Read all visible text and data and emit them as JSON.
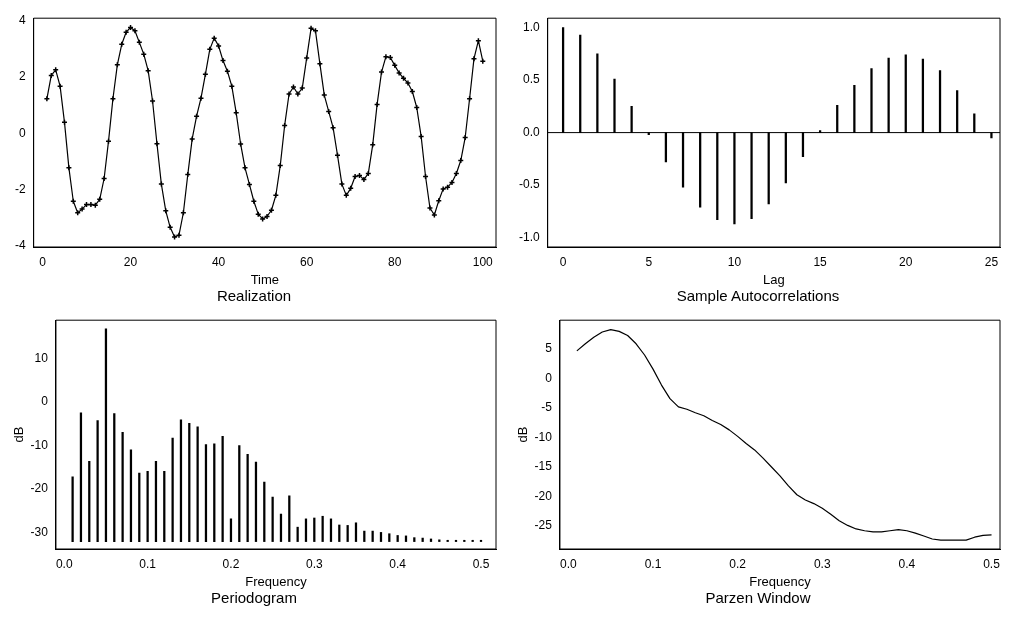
{
  "chart_data": [
    {
      "type": "line",
      "title": "Realization",
      "xlabel": "Time",
      "color": "#000000",
      "marker": "cross",
      "line_style": "solid",
      "x": [
        1,
        2,
        3,
        4,
        5,
        6,
        7,
        8,
        9,
        10,
        11,
        12,
        13,
        14,
        15,
        16,
        17,
        18,
        19,
        20,
        21,
        22,
        23,
        24,
        25,
        26,
        27,
        28,
        29,
        30,
        31,
        32,
        33,
        34,
        35,
        36,
        37,
        38,
        39,
        40,
        41,
        42,
        43,
        44,
        45,
        46,
        47,
        48,
        49,
        50,
        51,
        52,
        53,
        54,
        55,
        56,
        57,
        58,
        59,
        60,
        61,
        62,
        63,
        64,
        65,
        66,
        67,
        68,
        69,
        70,
        71,
        72,
        73,
        74,
        75,
        76,
        77,
        78,
        79,
        80,
        81,
        82,
        83,
        84,
        85,
        86,
        87,
        88,
        89,
        90,
        91,
        92,
        93,
        94,
        95,
        96,
        97,
        98,
        99,
        100
      ],
      "values": [
        1.23,
        2.06,
        2.26,
        1.68,
        0.39,
        -1.23,
        -2.42,
        -2.83,
        -2.7,
        -2.54,
        -2.54,
        -2.56,
        -2.35,
        -1.61,
        -0.28,
        1.23,
        2.44,
        3.17,
        3.6,
        3.77,
        3.65,
        3.24,
        2.82,
        2.23,
        1.15,
        -0.37,
        -1.81,
        -2.76,
        -3.35,
        -3.69,
        -3.63,
        -2.83,
        -1.47,
        -0.2,
        0.61,
        1.25,
        2.1,
        2.99,
        3.39,
        3.11,
        2.59,
        2.21,
        1.68,
        0.73,
        -0.38,
        -1.23,
        -1.82,
        -2.42,
        -2.88,
        -3.05,
        -2.96,
        -2.74,
        -2.21,
        -1.15,
        0.28,
        1.4,
        1.65,
        1.4,
        1.61,
        2.68,
        3.74,
        3.65,
        2.48,
        1.36,
        0.78,
        0.2,
        -0.78,
        -1.81,
        -2.21,
        -1.96,
        -1.54,
        -1.5,
        -1.65,
        -1.43,
        -0.41,
        1.03,
        2.18,
        2.73,
        2.7,
        2.42,
        2.15,
        1.96,
        1.79,
        1.49,
        0.92,
        -0.11,
        -1.54,
        -2.66,
        -2.91,
        -2.4,
        -1.98,
        -1.92,
        -1.75,
        -1.43,
        -0.97,
        -0.15,
        1.23,
        2.66,
        3.3,
        2.57
      ],
      "xlim": [
        -2,
        103
      ],
      "xticks": [
        0,
        20,
        40,
        60,
        80,
        100
      ],
      "ylim": [
        -4.05,
        4.1
      ],
      "yticks": [
        -4,
        -2,
        0,
        2,
        4
      ],
      "grid": false
    },
    {
      "type": "bar",
      "title": "Sample Autocorrelations",
      "xlabel": "Lag",
      "color": "#000000",
      "x": [
        0,
        1,
        2,
        3,
        4,
        5,
        6,
        7,
        8,
        9,
        10,
        11,
        12,
        13,
        14,
        15,
        16,
        17,
        18,
        19,
        20,
        21,
        22,
        23,
        24,
        25
      ],
      "values": [
        1.0,
        0.93,
        0.75,
        0.51,
        0.25,
        -0.02,
        -0.28,
        -0.52,
        -0.71,
        -0.83,
        -0.87,
        -0.82,
        -0.68,
        -0.48,
        -0.23,
        0.02,
        0.26,
        0.45,
        0.61,
        0.71,
        0.74,
        0.7,
        0.59,
        0.4,
        0.18,
        -0.05
      ],
      "xlim": [
        -0.9,
        25.5
      ],
      "xticks": [
        0,
        5,
        10,
        15,
        20,
        25
      ],
      "ylim": [
        -1.09,
        1.09
      ],
      "yticks": [
        {
          "value": -1,
          "label": "-1.0"
        },
        {
          "value": -0.5,
          "label": "-0.5"
        },
        {
          "value": 0,
          "label": "0.0"
        },
        {
          "value": 0.5,
          "label": "0.5"
        },
        {
          "value": 1,
          "label": "1.0"
        }
      ],
      "ref_lines": [
        {
          "axis": "y",
          "value": 0,
          "color": "#000000"
        }
      ],
      "grid": false
    },
    {
      "type": "bar",
      "title": "Periodogram",
      "xlabel": "Frequency",
      "ylabel": "dB",
      "color": "#000000",
      "x": [
        0.01,
        0.02,
        0.03,
        0.04,
        0.05,
        0.06,
        0.07,
        0.08,
        0.09,
        0.1,
        0.11,
        0.12,
        0.13,
        0.14,
        0.15,
        0.16,
        0.17,
        0.18,
        0.19,
        0.2,
        0.21,
        0.22,
        0.23,
        0.24,
        0.25,
        0.26,
        0.27,
        0.28,
        0.29,
        0.3,
        0.31,
        0.32,
        0.33,
        0.34,
        0.35,
        0.36,
        0.37,
        0.38,
        0.39,
        0.4,
        0.41,
        0.42,
        0.43,
        0.44,
        0.45,
        0.46,
        0.47,
        0.48,
        0.49,
        0.5
      ],
      "base": [
        -32,
        -32,
        -32,
        -32,
        -32,
        -32,
        -32,
        -32,
        -32,
        -32,
        -32,
        -32,
        -32,
        -32,
        -32,
        -32,
        -32,
        -32,
        -32,
        -32,
        -32,
        -32,
        -32,
        -32,
        -32,
        -32,
        -32,
        -32,
        -32,
        -32,
        -32,
        -32,
        -32,
        -32,
        -32,
        -32,
        -32,
        -32,
        -32,
        -32,
        -32,
        -32,
        -32,
        -32,
        -32,
        -32,
        -32,
        -32,
        -32,
        -32
      ],
      "values": [
        14.8,
        29.5,
        18.4,
        27.7,
        48.7,
        29.3,
        25,
        21,
        15.7,
        16.1,
        18.4,
        16.1,
        23.7,
        27.9,
        27.1,
        26.3,
        22.2,
        22.4,
        24.1,
        5.2,
        22,
        20,
        18.2,
        13.6,
        10.2,
        6.3,
        10.5,
        3.3,
        5.2,
        5.4,
        5.8,
        5.2,
        3.8,
        3.7,
        4.3,
        2.4,
        2.4,
        2.1,
        1.8,
        1.4,
        1.3,
        0.9,
        0.8,
        0.6,
        0.4,
        0.3,
        0.3,
        0.3,
        0.3,
        0.3
      ],
      "xlim": [
        -0.01,
        0.518
      ],
      "xticks": [
        {
          "value": 0,
          "label": "0.0"
        },
        {
          "value": 0.1,
          "label": "0.1"
        },
        {
          "value": 0.2,
          "label": "0.2"
        },
        {
          "value": 0.3,
          "label": "0.3"
        },
        {
          "value": 0.4,
          "label": "0.4"
        },
        {
          "value": 0.5,
          "label": "0.5"
        }
      ],
      "ylim": [
        -33.7,
        18.7
      ],
      "yticks": [
        -30,
        -20,
        -10,
        0,
        10
      ],
      "grid": false
    },
    {
      "type": "line",
      "title": "Parzen Window",
      "xlabel": "Frequency",
      "ylabel": "dB",
      "color": "#000000",
      "line_style": "solid",
      "x": [
        0.01,
        0.02,
        0.03,
        0.04,
        0.05,
        0.06,
        0.07,
        0.08,
        0.09,
        0.1,
        0.11,
        0.12,
        0.13,
        0.14,
        0.15,
        0.16,
        0.17,
        0.18,
        0.19,
        0.2,
        0.21,
        0.22,
        0.23,
        0.24,
        0.25,
        0.26,
        0.27,
        0.28,
        0.29,
        0.3,
        0.31,
        0.32,
        0.33,
        0.34,
        0.35,
        0.36,
        0.37,
        0.38,
        0.39,
        0.4,
        0.41,
        0.42,
        0.43,
        0.44,
        0.45,
        0.46,
        0.47,
        0.48,
        0.49,
        0.5
      ],
      "values": [
        4.7,
        5.9,
        7.0,
        7.9,
        8.3,
        8.0,
        7.3,
        5.9,
        4.0,
        1.6,
        -1.1,
        -3.4,
        -4.8,
        -5.2,
        -5.8,
        -6.3,
        -7.1,
        -7.8,
        -8.7,
        -9.8,
        -11.0,
        -12.1,
        -13.5,
        -15.0,
        -16.5,
        -18.2,
        -19.7,
        -20.6,
        -21.2,
        -22.0,
        -23.0,
        -24.1,
        -24.9,
        -25.5,
        -25.8,
        -26.0,
        -26.0,
        -25.8,
        -25.6,
        -25.8,
        -26.2,
        -26.7,
        -27.2,
        -27.4,
        -27.4,
        -27.4,
        -27.4,
        -26.9,
        -26.6,
        -26.5
      ],
      "xlim": [
        -0.01,
        0.51
      ],
      "xticks": [
        {
          "value": 0,
          "label": "0.0"
        },
        {
          "value": 0.1,
          "label": "0.1"
        },
        {
          "value": 0.2,
          "label": "0.2"
        },
        {
          "value": 0.3,
          "label": "0.3"
        },
        {
          "value": 0.4,
          "label": "0.4"
        },
        {
          "value": 0.5,
          "label": "0.5"
        }
      ],
      "ylim": [
        -28.9,
        9.9
      ],
      "yticks": [
        -25,
        -20,
        -15,
        -10,
        -5,
        0,
        5
      ],
      "grid": false
    }
  ]
}
